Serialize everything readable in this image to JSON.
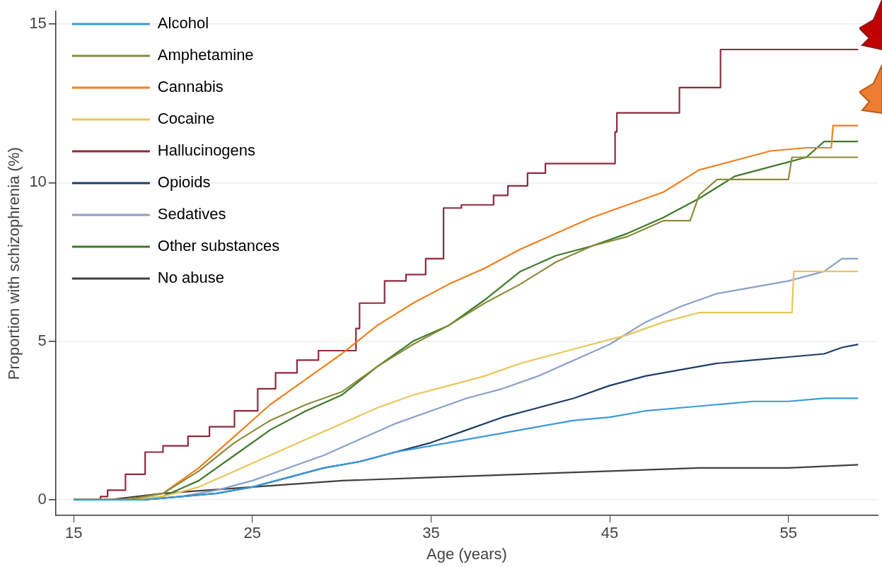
{
  "chart_data": {
    "type": "line",
    "xlabel": "Age (years)",
    "ylabel": "Proportion with schizophrenia (%)",
    "xlim": [
      14,
      60
    ],
    "ylim": [
      -0.5,
      15.4
    ],
    "xticks": [
      15,
      25,
      35,
      45,
      55
    ],
    "yticks": [
      0,
      5,
      10,
      15
    ],
    "grid": "y",
    "legend": "top left",
    "line_style": "solid",
    "marker": "none",
    "series": [
      {
        "name": "Alcohol",
        "color": "#3a9ad9",
        "x": [
          15,
          19,
          21,
          23,
          25,
          27,
          29,
          31,
          33,
          35,
          37,
          39,
          41,
          43,
          45,
          47,
          49,
          51,
          53,
          55,
          57,
          58.9
        ],
        "values": [
          0,
          0,
          0.1,
          0.2,
          0.4,
          0.7,
          1,
          1.2,
          1.5,
          1.7,
          1.9,
          2.1,
          2.3,
          2.5,
          2.6,
          2.8,
          2.9,
          3,
          3.1,
          3.1,
          3.2,
          3.2
        ]
      },
      {
        "name": "Amphetamine",
        "color": "#8b8b3a",
        "x": [
          15,
          18,
          20,
          22,
          24,
          26,
          28,
          30,
          32,
          34,
          36,
          38,
          40,
          42,
          44,
          46,
          48,
          49.5,
          50,
          51,
          55,
          55.2,
          58.9
        ],
        "values": [
          0,
          0,
          0.2,
          0.9,
          1.8,
          2.5,
          3,
          3.4,
          4.2,
          4.9,
          5.5,
          6.2,
          6.8,
          7.5,
          8,
          8.3,
          8.8,
          8.8,
          9.6,
          10.1,
          10.1,
          10.8,
          10.8
        ]
      },
      {
        "name": "Cannabis",
        "color": "#f07f1f",
        "x": [
          15,
          18,
          20,
          22,
          24,
          26,
          28,
          30,
          32,
          34,
          36,
          38,
          40,
          42,
          44,
          46,
          48,
          50,
          52,
          54,
          56,
          57.4,
          57.5,
          58.9
        ],
        "values": [
          0,
          0,
          0.2,
          1,
          2,
          3,
          3.8,
          4.6,
          5.5,
          6.2,
          6.8,
          7.3,
          7.9,
          8.4,
          8.9,
          9.3,
          9.7,
          10.4,
          10.7,
          11,
          11.1,
          11.1,
          11.8,
          11.8
        ]
      },
      {
        "name": "Cocaine",
        "color": "#e8c65a",
        "x": [
          15,
          18,
          20,
          22,
          24,
          26,
          28,
          30,
          32,
          34,
          36,
          38,
          40,
          42,
          44,
          46,
          48,
          50,
          55.2,
          55.3,
          58.9
        ],
        "values": [
          0,
          0,
          0.1,
          0.4,
          0.9,
          1.4,
          1.9,
          2.4,
          2.9,
          3.3,
          3.6,
          3.9,
          4.3,
          4.6,
          4.9,
          5.2,
          5.6,
          5.9,
          5.9,
          7.2,
          7.2
        ]
      },
      {
        "name": "Hallucinogens",
        "type": "step",
        "color": "#8e2a3e",
        "x": [
          15,
          16.5,
          16.9,
          17.9,
          19,
          20,
          21.4,
          22.6,
          24,
          25.3,
          26.3,
          27.5,
          28.7,
          29.6,
          30.8,
          31,
          32.4,
          33.6,
          34.7,
          35.7,
          36.7,
          38.5,
          39.3,
          40.4,
          41.4,
          42.2,
          45.3,
          45.4,
          46.3,
          48.9,
          49,
          51.2,
          51.6,
          58.9
        ],
        "values": [
          0,
          0,
          0.1,
          0.3,
          0.8,
          1.5,
          1.7,
          2,
          2.3,
          2.8,
          3.5,
          4,
          4.4,
          4.7,
          4.7,
          5.4,
          6.2,
          6.9,
          7.1,
          7.6,
          9.2,
          9.3,
          9.6,
          9.9,
          10.3,
          10.6,
          10.6,
          11.6,
          12.2,
          12.2,
          13,
          13,
          14.2,
          14.2
        ]
      },
      {
        "name": "Opioids",
        "color": "#1f3d66",
        "x": [
          15,
          19,
          21,
          23,
          25,
          27,
          29,
          31,
          33,
          35,
          37,
          39,
          41,
          43,
          45,
          47,
          49,
          51,
          53,
          55,
          57,
          58,
          58.9
        ],
        "values": [
          0,
          0,
          0.1,
          0.2,
          0.4,
          0.7,
          1,
          1.2,
          1.5,
          1.8,
          2.2,
          2.6,
          2.9,
          3.2,
          3.6,
          3.9,
          4.1,
          4.3,
          4.4,
          4.5,
          4.6,
          4.8,
          4.9
        ]
      },
      {
        "name": "Sedatives",
        "color": "#8aa0c8",
        "x": [
          15,
          19,
          21,
          23,
          25,
          27,
          29,
          31,
          33,
          35,
          37,
          39,
          41,
          43,
          45,
          47,
          49,
          51,
          53,
          55,
          57,
          58,
          58.9
        ],
        "values": [
          0,
          0,
          0.1,
          0.3,
          0.6,
          1,
          1.4,
          1.9,
          2.4,
          2.8,
          3.2,
          3.5,
          3.9,
          4.4,
          4.9,
          5.6,
          6.1,
          6.5,
          6.7,
          6.9,
          7.2,
          7.6,
          7.6
        ]
      },
      {
        "name": "Other substances",
        "color": "#3d7a2a",
        "x": [
          15,
          18,
          20,
          22,
          24,
          26,
          28,
          30,
          32,
          34,
          36,
          38,
          40,
          42,
          44,
          46,
          48,
          50,
          52,
          54,
          56,
          57,
          58.9
        ],
        "values": [
          0,
          0,
          0.1,
          0.6,
          1.4,
          2.2,
          2.8,
          3.3,
          4.2,
          5,
          5.5,
          6.3,
          7.2,
          7.7,
          8,
          8.4,
          8.9,
          9.5,
          10.2,
          10.5,
          10.8,
          11.3,
          11.3
        ]
      },
      {
        "name": "No abuse",
        "color": "#404040",
        "x": [
          15,
          17,
          20,
          25,
          30,
          35,
          40,
          45,
          50,
          55,
          58.9
        ],
        "values": [
          0,
          0,
          0.2,
          0.4,
          0.6,
          0.7,
          0.8,
          0.9,
          1,
          1,
          1.1
        ]
      }
    ]
  }
}
